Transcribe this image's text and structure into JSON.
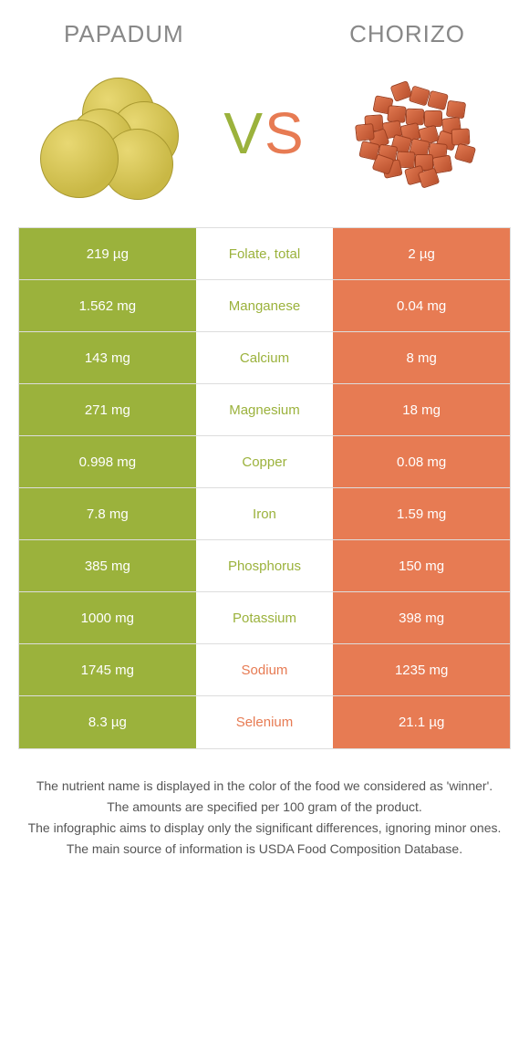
{
  "header": {
    "left": "Papadum",
    "right": "Chorizo"
  },
  "vs": {
    "v": "V",
    "s": "S"
  },
  "colors": {
    "green": "#9bb23c",
    "orange": "#e77b53",
    "background": "#ffffff",
    "border": "#dddddd",
    "text": "#555555"
  },
  "table": {
    "rows": [
      {
        "left": "219 µg",
        "label": "Folate, total",
        "right": "2 µg",
        "winner": "left"
      },
      {
        "left": "1.562 mg",
        "label": "Manganese",
        "right": "0.04 mg",
        "winner": "left"
      },
      {
        "left": "143 mg",
        "label": "Calcium",
        "right": "8 mg",
        "winner": "left"
      },
      {
        "left": "271 mg",
        "label": "Magnesium",
        "right": "18 mg",
        "winner": "left"
      },
      {
        "left": "0.998 mg",
        "label": "Copper",
        "right": "0.08 mg",
        "winner": "left"
      },
      {
        "left": "7.8 mg",
        "label": "Iron",
        "right": "1.59 mg",
        "winner": "left"
      },
      {
        "left": "385 mg",
        "label": "Phosphorus",
        "right": "150 mg",
        "winner": "left"
      },
      {
        "left": "1000 mg",
        "label": "Potassium",
        "right": "398 mg",
        "winner": "left"
      },
      {
        "left": "1745 mg",
        "label": "Sodium",
        "right": "1235 mg",
        "winner": "right"
      },
      {
        "left": "8.3 µg",
        "label": "Selenium",
        "right": "21.1 µg",
        "winner": "right"
      }
    ]
  },
  "footnotes": [
    "The nutrient name is displayed in the color of the food we considered as 'winner'.",
    "The amounts are specified per 100 gram of the product.",
    "The infographic aims to display only the significant differences, ignoring minor ones.",
    "The main source of information is USDA Food Composition Database."
  ]
}
